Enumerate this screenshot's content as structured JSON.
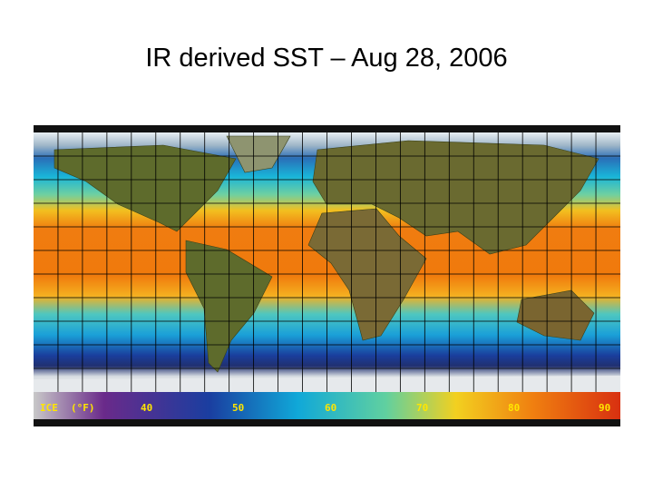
{
  "title": "IR derived SST – Aug 28, 2006",
  "map": {
    "colorbar_labels": [
      "ICE",
      "(°F)",
      "40",
      "50",
      "60",
      "70",
      "80",
      "90"
    ]
  }
}
